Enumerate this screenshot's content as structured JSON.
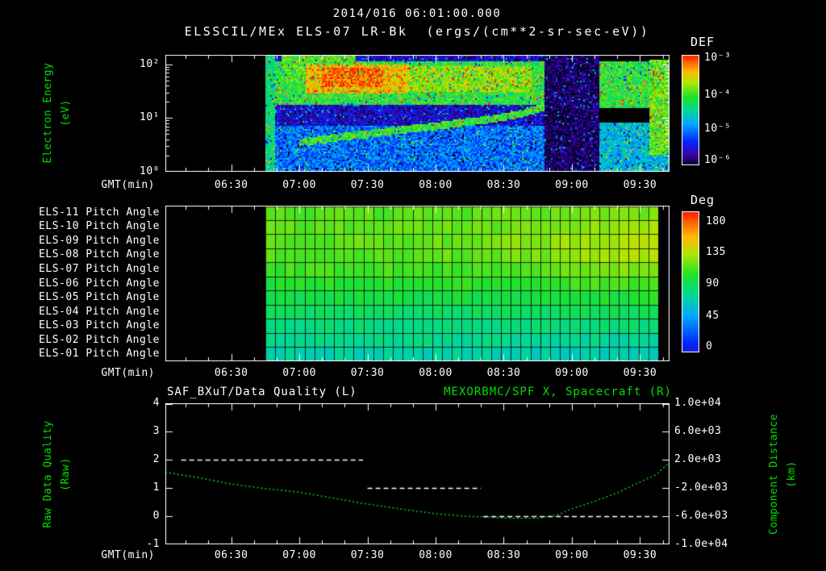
{
  "header": {
    "timestamp": "2014/016 06:01:00.000",
    "title": "ELSSCIL/MEx ELS-07 LR-Bk  (ergs/(cm**2-sr-sec-eV))"
  },
  "colors": {
    "background": "#000000",
    "axis_text": "#ffffff",
    "label_green": "#00e000",
    "curve_green": "#00c424",
    "quality_white": "#ffffff"
  },
  "time_axis": {
    "label": "GMT(min)",
    "units": "minutes_after_midnight",
    "start_minute": 361,
    "end_minute": 583,
    "ticks": [
      {
        "t": 390,
        "label": "06:30"
      },
      {
        "t": 420,
        "label": "07:00"
      },
      {
        "t": 450,
        "label": "07:30"
      },
      {
        "t": 480,
        "label": "08:00"
      },
      {
        "t": 510,
        "label": "08:30"
      },
      {
        "t": 540,
        "label": "09:00"
      },
      {
        "t": 570,
        "label": "09:30"
      }
    ]
  },
  "chart_data": [
    {
      "type": "heatmap",
      "name": "electron-energy-spectrogram",
      "title": "ELSSCIL/MEx ELS-07 LR-Bk (ergs/(cm**2-sr-sec-eV))",
      "xlabel": "GMT(min)",
      "ylabel_lines": [
        "Electron Energy",
        "(eV)"
      ],
      "y_scale": "log",
      "y_range_ev": [
        1,
        150
      ],
      "y_ticks": [
        "10²",
        "10¹",
        "10⁰"
      ],
      "x_range_min": [
        361,
        583
      ],
      "colorbar": {
        "title": "DEF",
        "units": "ergs/(cm**2-sr-sec-eV)",
        "ticks": [
          "10⁻³",
          "10⁻⁴",
          "10⁻⁵",
          "10⁻⁶"
        ],
        "exponent_range": [
          -3,
          -6.6
        ]
      },
      "value_units": "log10 DEF",
      "no_data_before_min": 405,
      "bands": [
        {
          "t": [
            405,
            528
          ],
          "e": [
            1,
            150
          ],
          "v": -6.1
        },
        {
          "t": [
            405,
            528
          ],
          "e": [
            1,
            7
          ],
          "v": -5.5
        },
        {
          "t": [
            405,
            409
          ],
          "e": [
            1,
            150
          ],
          "v": -4.7
        },
        {
          "t": [
            409,
            528
          ],
          "e": [
            18,
            110
          ],
          "v": -4.4
        },
        {
          "t": [
            412,
            445
          ],
          "e": [
            55,
            150
          ],
          "v": -4.25
        },
        {
          "t": [
            423,
            468
          ],
          "e": [
            28,
            100
          ],
          "v": -3.6
        },
        {
          "t": [
            430,
            457
          ],
          "e": [
            38,
            88
          ],
          "v": -3.25
        },
        {
          "t": [
            468,
            522
          ],
          "e": [
            30,
            90
          ],
          "v": -4.0
        },
        {
          "t": [
            528,
            552
          ],
          "e": [
            1,
            150
          ],
          "v": -6.45
        },
        {
          "t": [
            552,
            583
          ],
          "e": [
            15,
            110
          ],
          "v": -4.4
        },
        {
          "t": [
            552,
            583
          ],
          "e": [
            1,
            8
          ],
          "v": -5.1
        },
        {
          "t": [
            574,
            583
          ],
          "e": [
            2,
            125
          ],
          "v": -4.15
        }
      ],
      "ridge": {
        "points_t_ev": [
          [
            420,
            3.5
          ],
          [
            450,
            5
          ],
          [
            480,
            7
          ],
          [
            505,
            9.5
          ],
          [
            518,
            12
          ],
          [
            528,
            16
          ]
        ],
        "v": -4.35
      }
    },
    {
      "type": "heatmap",
      "name": "pitch-angle-panel",
      "xlabel": "GMT(min)",
      "rows": [
        "ELS-11 Pitch Angle",
        "ELS-10 Pitch Angle",
        "ELS-09 Pitch Angle",
        "ELS-08 Pitch Angle",
        "ELS-07 Pitch Angle",
        "ELS-06 Pitch Angle",
        "ELS-05 Pitch Angle",
        "ELS-04 Pitch Angle",
        "ELS-03 Pitch Angle",
        "ELS-02 Pitch Angle",
        "ELS-01 Pitch Angle"
      ],
      "x_range_min": [
        361,
        583
      ],
      "data_range_min": [
        405,
        578
      ],
      "grid_bin_min": 4.325,
      "colorbar": {
        "title": "Deg",
        "ticks": [
          "180",
          "135",
          "90",
          "45",
          "0"
        ],
        "range_deg": [
          0,
          180
        ]
      },
      "series": [
        {
          "name": "ELS-11",
          "points_t_deg": [
            [
              405,
              108
            ],
            [
              500,
              110
            ],
            [
              560,
              114
            ],
            [
              578,
              116
            ]
          ]
        },
        {
          "name": "ELS-10",
          "points_t_deg": [
            [
              405,
              110
            ],
            [
              500,
              112
            ],
            [
              560,
              120
            ],
            [
              578,
              123
            ]
          ]
        },
        {
          "name": "ELS-09",
          "points_t_deg": [
            [
              405,
              110
            ],
            [
              500,
              113
            ],
            [
              560,
              126
            ],
            [
              578,
              132
            ]
          ]
        },
        {
          "name": "ELS-08",
          "points_t_deg": [
            [
              405,
              108
            ],
            [
              500,
              111
            ],
            [
              560,
              123
            ],
            [
              578,
              129
            ]
          ]
        },
        {
          "name": "ELS-07",
          "points_t_deg": [
            [
              405,
              104
            ],
            [
              500,
              106
            ],
            [
              560,
              116
            ],
            [
              578,
              120
            ]
          ]
        },
        {
          "name": "ELS-06",
          "points_t_deg": [
            [
              405,
              98
            ],
            [
              500,
              100
            ],
            [
              560,
              106
            ],
            [
              578,
              108
            ]
          ]
        },
        {
          "name": "ELS-05",
          "points_t_deg": [
            [
              405,
              92
            ],
            [
              500,
              93
            ],
            [
              560,
              97
            ],
            [
              578,
              98
            ]
          ]
        },
        {
          "name": "ELS-04",
          "points_t_deg": [
            [
              405,
              85
            ],
            [
              500,
              86
            ],
            [
              560,
              88
            ],
            [
              578,
              88
            ]
          ]
        },
        {
          "name": "ELS-03",
          "points_t_deg": [
            [
              405,
              80
            ],
            [
              500,
              80
            ],
            [
              560,
              80
            ],
            [
              578,
              79
            ]
          ]
        },
        {
          "name": "ELS-02",
          "points_t_deg": [
            [
              405,
              76
            ],
            [
              500,
              75
            ],
            [
              560,
              73
            ],
            [
              578,
              71
            ]
          ]
        },
        {
          "name": "ELS-01",
          "points_t_deg": [
            [
              405,
              70
            ],
            [
              500,
              69
            ],
            [
              560,
              65
            ],
            [
              578,
              62
            ]
          ]
        }
      ]
    },
    {
      "type": "line",
      "name": "quality-distance-plot",
      "titles": {
        "left": "SAF_BXuT/Data Quality (L)",
        "right": "MEXORBMC/SPF X, Spacecraft (R)"
      },
      "xlabel": "GMT(min)",
      "ylabel_left_lines": [
        "Raw Data Quality",
        "(Raw)"
      ],
      "ylabel_right_lines": [
        "Component Distance",
        "(km)"
      ],
      "y_left": {
        "range": [
          -1,
          4
        ],
        "ticks": [
          "4",
          "3",
          "2",
          "1",
          "0",
          "-1"
        ]
      },
      "y_right": {
        "range": [
          -10000,
          10000
        ],
        "ticks": [
          "1.0e+04",
          "6.0e+03",
          "2.0e+03",
          "-2.0e+03",
          "-6.0e+03",
          "-1.0e+04"
        ]
      },
      "series": [
        {
          "name": "SAF_BXuT/Data Quality",
          "axis": "left",
          "style": "dashed",
          "color": "#ffffff",
          "segments": [
            {
              "t": [
                368,
                448
              ],
              "v": 2
            },
            {
              "t": [
                450,
                500
              ],
              "v": 1
            },
            {
              "t": [
                501,
                578
              ],
              "v": 0
            }
          ]
        },
        {
          "name": "MEXORBMC/SPF X Spacecraft",
          "axis": "right",
          "style": "dotted",
          "color": "#00c424",
          "points_t_km": [
            [
              361,
              200
            ],
            [
              375,
              -500
            ],
            [
              390,
              -1450
            ],
            [
              405,
              -2100
            ],
            [
              420,
              -2600
            ],
            [
              435,
              -3450
            ],
            [
              450,
              -4300
            ],
            [
              465,
              -5000
            ],
            [
              480,
              -5650
            ],
            [
              492,
              -6000
            ],
            [
              505,
              -6180
            ],
            [
              515,
              -6300
            ],
            [
              525,
              -6280
            ],
            [
              533,
              -5900
            ],
            [
              540,
              -4950
            ],
            [
              550,
              -3900
            ],
            [
              560,
              -2700
            ],
            [
              570,
              -1150
            ],
            [
              577,
              -150
            ],
            [
              583,
              1600
            ]
          ]
        }
      ]
    }
  ]
}
